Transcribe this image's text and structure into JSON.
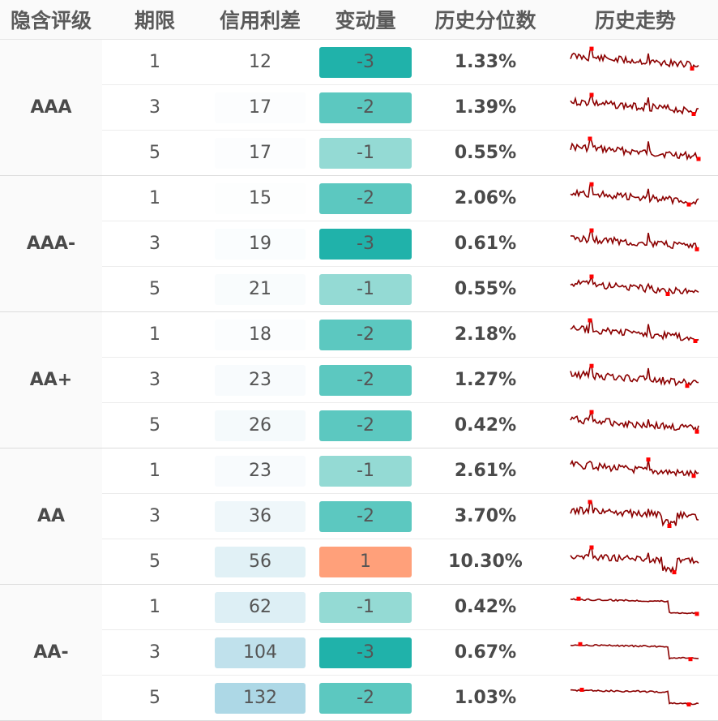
{
  "header": {
    "rating": "隐含评级",
    "tenor": "期限",
    "spread": "信用利差",
    "change": "变动量",
    "percentile": "历史分位数",
    "trend": "历史走势"
  },
  "colors": {
    "spread_scale": [
      "#ffffff",
      "#f6fafb",
      "#eaf4f8",
      "#d9ecf3",
      "#c0e0ec",
      "#add8e6"
    ],
    "change_neg3": "#20b2aa",
    "change_neg2": "#5cc8c0",
    "change_neg1": "#94dad4",
    "change_pos1": "#ffa07a",
    "sparkline": "#8b0000",
    "sparkline_marker": "#ff0000"
  },
  "groups": [
    {
      "rating": "AAA",
      "rows": [
        {
          "tenor": "1",
          "spread": "12",
          "change": "-3",
          "percentile": "1.33%",
          "spread_level": 0.0,
          "change_class": "neg3"
        },
        {
          "tenor": "3",
          "spread": "17",
          "change": "-2",
          "percentile": "1.39%",
          "spread_level": 0.04,
          "change_class": "neg2"
        },
        {
          "tenor": "5",
          "spread": "17",
          "change": "-1",
          "percentile": "0.55%",
          "spread_level": 0.04,
          "change_class": "neg1"
        }
      ]
    },
    {
      "rating": "AAA-",
      "rows": [
        {
          "tenor": "1",
          "spread": "15",
          "change": "-2",
          "percentile": "2.06%",
          "spread_level": 0.025,
          "change_class": "neg2"
        },
        {
          "tenor": "3",
          "spread": "19",
          "change": "-3",
          "percentile": "0.61%",
          "spread_level": 0.06,
          "change_class": "neg3"
        },
        {
          "tenor": "5",
          "spread": "21",
          "change": "-1",
          "percentile": "0.55%",
          "spread_level": 0.075,
          "change_class": "neg1"
        }
      ]
    },
    {
      "rating": "AA+",
      "rows": [
        {
          "tenor": "1",
          "spread": "18",
          "change": "-2",
          "percentile": "2.18%",
          "spread_level": 0.05,
          "change_class": "neg2"
        },
        {
          "tenor": "3",
          "spread": "23",
          "change": "-2",
          "percentile": "1.27%",
          "spread_level": 0.09,
          "change_class": "neg2"
        },
        {
          "tenor": "5",
          "spread": "26",
          "change": "-2",
          "percentile": "0.42%",
          "spread_level": 0.12,
          "change_class": "neg2"
        }
      ]
    },
    {
      "rating": "AA",
      "rows": [
        {
          "tenor": "1",
          "spread": "23",
          "change": "-1",
          "percentile": "2.61%",
          "spread_level": 0.09,
          "change_class": "neg1"
        },
        {
          "tenor": "3",
          "spread": "36",
          "change": "-2",
          "percentile": "3.70%",
          "spread_level": 0.2,
          "change_class": "neg2"
        },
        {
          "tenor": "5",
          "spread": "56",
          "change": "1",
          "percentile": "10.30%",
          "spread_level": 0.37,
          "change_class": "pos1"
        }
      ]
    },
    {
      "rating": "AA-",
      "rows": [
        {
          "tenor": "1",
          "spread": "62",
          "change": "-1",
          "percentile": "0.42%",
          "spread_level": 0.42,
          "change_class": "neg1"
        },
        {
          "tenor": "3",
          "spread": "104",
          "change": "-3",
          "percentile": "0.67%",
          "spread_level": 0.77,
          "change_class": "neg3"
        },
        {
          "tenor": "5",
          "spread": "132",
          "change": "-2",
          "percentile": "1.03%",
          "spread_level": 1.0,
          "change_class": "neg2"
        }
      ]
    }
  ]
}
